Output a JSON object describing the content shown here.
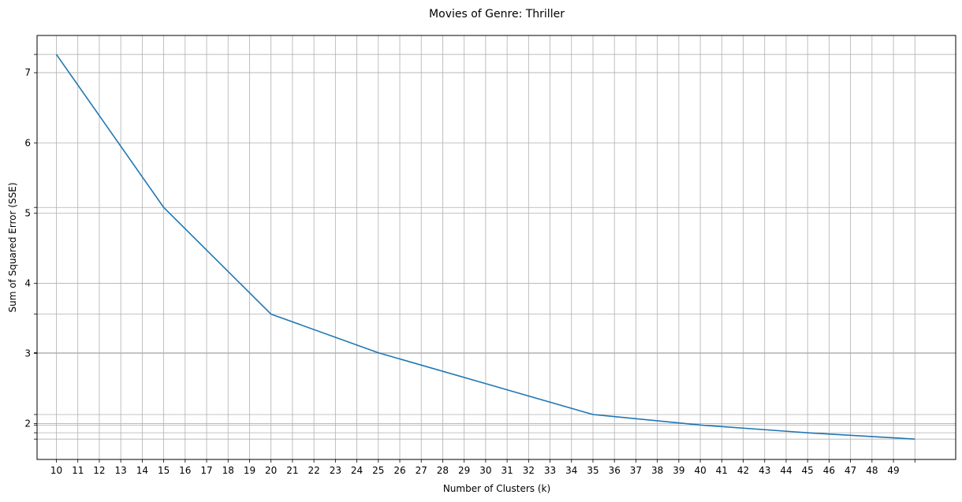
{
  "chart_data": {
    "type": "line",
    "title": "Movies of Genre: Thriller",
    "xlabel": "Number of Clusters (k)",
    "ylabel": "Sum of Squared Error (SSE)",
    "x_tick_labels": [
      "10",
      "11",
      "12",
      "13",
      "14",
      "15",
      "16",
      "17",
      "18",
      "19",
      "20",
      "21",
      "22",
      "23",
      "24",
      "25",
      "26",
      "27",
      "28",
      "29",
      "30",
      "31",
      "32",
      "33",
      "34",
      "35",
      "36",
      "37",
      "38",
      "39",
      "40",
      "41",
      "42",
      "43",
      "44",
      "45",
      "46",
      "47",
      "48",
      "49"
    ],
    "y_tick_labels": [
      "2",
      "3",
      "4",
      "5",
      "6",
      "7"
    ],
    "xlim": [
      9.1,
      51.9
    ],
    "ylim": [
      1.49,
      7.53
    ],
    "grid": true,
    "series": [
      {
        "color": "#1f77b4",
        "x": [
          10,
          15,
          20,
          25,
          35,
          40,
          45,
          50
        ],
        "y": [
          7.26,
          5.08,
          3.56,
          3.01,
          2.13,
          1.98,
          1.87,
          1.78
        ]
      }
    ]
  }
}
